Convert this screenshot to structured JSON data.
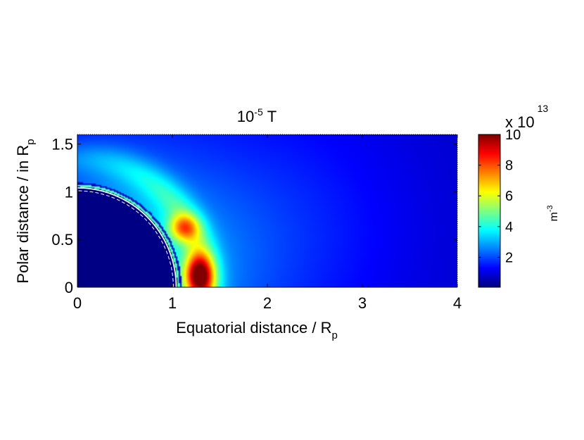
{
  "chart_data": {
    "type": "heatmap",
    "title": "10",
    "title_exponent": "-5",
    "title_unit": "T",
    "xlabel": "Equatorial distance / R",
    "xlabel_sub": "p",
    "ylabel": "Polar distance / in R",
    "ylabel_sub": "p",
    "xlim": [
      0,
      4
    ],
    "ylim": [
      0,
      1.6
    ],
    "x_ticks": [
      0,
      1,
      2,
      3,
      4
    ],
    "x_tick_labels": [
      "0",
      "1",
      "2",
      "3",
      "4"
    ],
    "y_ticks": [
      0,
      0.5,
      1,
      1.5
    ],
    "y_tick_labels": [
      "0",
      "0.5",
      "1",
      "1.5"
    ],
    "colorbar": {
      "label": "m",
      "label_exponent": "-3",
      "multiplier": "x 10",
      "multiplier_exponent": "13",
      "colormap": "jet",
      "range": [
        0.05,
        10
      ],
      "ticks": [
        2,
        4,
        6,
        8,
        10
      ],
      "tick_labels": [
        "2",
        "4",
        "6",
        "8",
        "10"
      ]
    },
    "planet_radius": 1.05,
    "density_peaks": [
      {
        "x": 1.28,
        "y": 0.12,
        "value": 9.8
      },
      {
        "x": 1.12,
        "y": 0.62,
        "value": 6.8
      }
    ],
    "background_far_value": 1.2
  }
}
